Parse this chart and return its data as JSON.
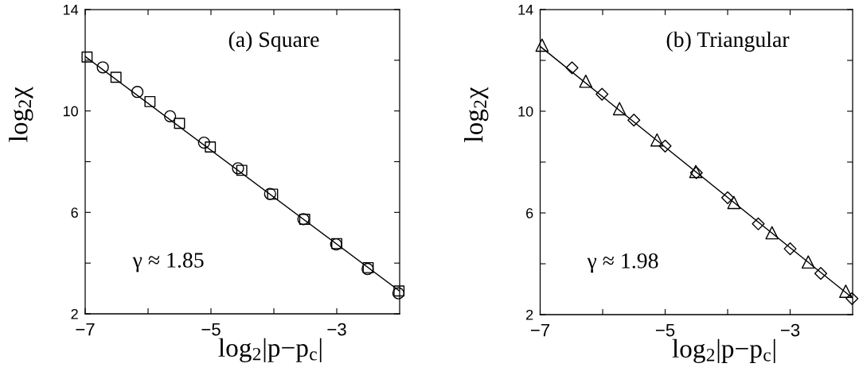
{
  "chart_data": [
    {
      "type": "scatter",
      "xlabel": "log$_{2}$|p−p$_{c}$|",
      "ylabel": "log$_{2}$χ",
      "annotations": [
        "(a) Square",
        "γ ≈ 1.85"
      ],
      "xlim": [
        -7,
        -2
      ],
      "ylim": [
        2,
        14
      ],
      "xticks": [
        {
          "value": -7,
          "label": "−7"
        },
        {
          "value": -6,
          "label": null
        },
        {
          "value": -5,
          "label": "−5"
        },
        {
          "value": -4,
          "label": null
        },
        {
          "value": -3,
          "label": "−3"
        }
      ],
      "yticks": [
        2,
        {
          "value": 4,
          "label": null
        },
        6,
        {
          "value": 8,
          "label": null
        },
        10,
        {
          "value": 12,
          "label": null
        },
        14
      ],
      "series": [
        {
          "type": "scatter",
          "marker": "square",
          "color": "#000000",
          "x": [
            -6.97,
            -6.51,
            -5.97,
            -5.5,
            -5.01,
            -4.51,
            -4.02,
            -3.51,
            -3.0,
            -2.5,
            -2.01
          ],
          "values": [
            12.13,
            11.33,
            10.37,
            9.51,
            8.58,
            7.66,
            6.72,
            5.73,
            4.77,
            3.82,
            2.9
          ]
        },
        {
          "type": "scatter",
          "marker": "circle",
          "color": "#000000",
          "x": [
            -6.72,
            -6.17,
            -5.65,
            -5.11,
            -4.57,
            -4.06,
            -3.53,
            -3.01,
            -2.51,
            -2.02
          ],
          "values": [
            11.72,
            10.75,
            9.79,
            8.75,
            7.74,
            6.73,
            5.73,
            4.74,
            3.77,
            2.81
          ]
        },
        {
          "type": "line",
          "line_style": "solid",
          "color": "#000000",
          "x": [
            -7,
            -2
          ],
          "values": [
            12.15,
            2.9
          ]
        }
      ]
    },
    {
      "type": "scatter",
      "xlabel": "log$_{2}$|p−p$_{c}$|",
      "ylabel": "log$_{2}$χ",
      "annotations": [
        "(b) Triangular",
        "γ ≈ 1.98"
      ],
      "xlim": [
        -7,
        -2
      ],
      "ylim": [
        2,
        14
      ],
      "xticks": [
        {
          "value": -7,
          "label": "−7"
        },
        {
          "value": -6,
          "label": null
        },
        {
          "value": -5,
          "label": "−5"
        },
        {
          "value": -4,
          "label": null
        },
        {
          "value": -3,
          "label": "−3"
        }
      ],
      "yticks": [
        2,
        {
          "value": 4,
          "label": null
        },
        6,
        {
          "value": 8,
          "label": null
        },
        10,
        {
          "value": 12,
          "label": null
        },
        14
      ],
      "series": [
        {
          "type": "scatter",
          "marker": "triangle",
          "color": "#000000",
          "x": [
            -6.97,
            -6.27,
            -5.73,
            -5.13,
            -4.51,
            -3.9,
            -3.29,
            -2.71,
            -2.11
          ],
          "values": [
            12.6,
            11.18,
            10.1,
            8.87,
            7.63,
            6.41,
            5.22,
            4.07,
            2.92
          ]
        },
        {
          "type": "scatter",
          "marker": "diamond",
          "color": "#000000",
          "x": [
            -6.49,
            -6.01,
            -5.5,
            -5.0,
            -4.5,
            -4.0,
            -3.51,
            -3.0,
            -2.51,
            -2.01
          ],
          "values": [
            11.71,
            10.67,
            9.65,
            8.63,
            7.58,
            6.6,
            5.57,
            4.59,
            3.62,
            2.63
          ]
        },
        {
          "type": "line",
          "line_style": "solid",
          "color": "#000000",
          "x": [
            -7,
            -2
          ],
          "values": [
            12.55,
            2.65
          ]
        }
      ]
    }
  ]
}
